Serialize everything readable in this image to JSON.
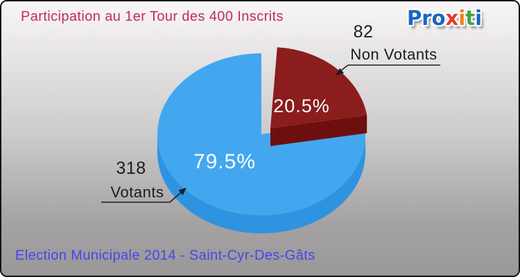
{
  "header": {
    "title": "Participation au 1er Tour des 400 Inscrits"
  },
  "logo": {
    "text": "Proxiti",
    "letters": [
      {
        "ch": "P",
        "color": "#1766c2"
      },
      {
        "ch": "r",
        "color": "#1766c2"
      },
      {
        "ch": "o",
        "color": "#1766c2"
      },
      {
        "ch": "x",
        "color": "#e23b29"
      },
      {
        "ch": "i",
        "color": "#ef7f1a"
      },
      {
        "ch": "t",
        "color": "#42a23d"
      },
      {
        "ch": "i",
        "color": "#1766c2"
      }
    ]
  },
  "footer": {
    "text": "Election Municipale 2014 - Saint-Cyr-Des-Gâts"
  },
  "colors": {
    "title": "#c22c57",
    "footer": "#4545ef",
    "callout_text": "#1c1c1c",
    "background_top": "#f8f6f6",
    "background_bottom": "#999797",
    "frame_border": "#141414"
  },
  "chart_data": {
    "type": "pie",
    "title": "Participation au 1er Tour des 400 Inscrits",
    "total": 400,
    "total_label": "400 Inscrits",
    "effect": "3d-exploded",
    "clockwise_from_top": true,
    "legend_position": "callouts",
    "slices": [
      {
        "label": "Non Votants",
        "value": 82,
        "pct": 20.5,
        "pct_label": "20.5%",
        "color": "#8b1d1d",
        "side_color": "#6e0f0f",
        "exploded": true
      },
      {
        "label": "Votants",
        "value": 318,
        "pct": 79.5,
        "pct_label": "79.5%",
        "color": "#42a7ef",
        "side_color": "#2e93e0",
        "exploded": false
      }
    ]
  }
}
